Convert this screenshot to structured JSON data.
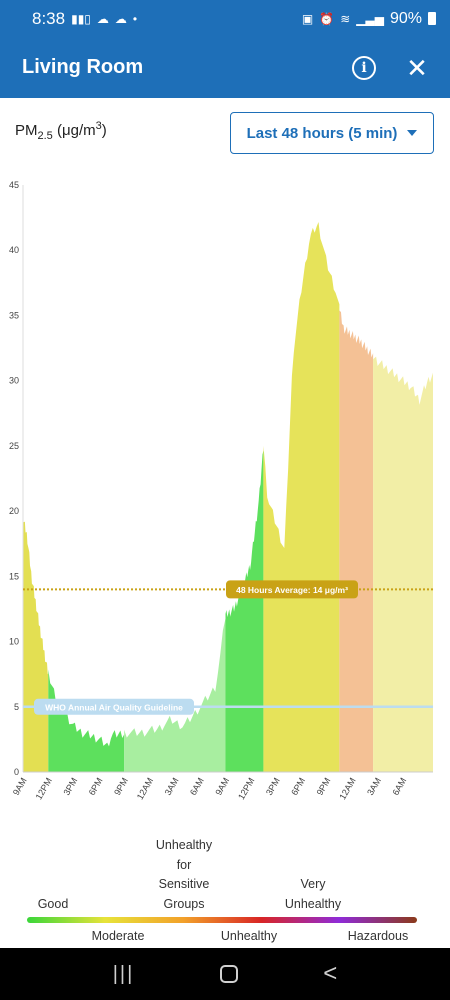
{
  "status_bar": {
    "time": "8:38",
    "battery": "90%",
    "icons": [
      "signal-bars-icon",
      "cloud-icon",
      "cloud-icon",
      "dot-icon",
      "battery-saver-icon",
      "alarm-icon",
      "wifi-icon",
      "cell-signal-icon",
      "battery-icon"
    ]
  },
  "app_bar": {
    "title": "Living Room",
    "info_icon": "info-icon",
    "close_icon": "close-icon"
  },
  "metric": {
    "name": "PM",
    "subscript": "2.5",
    "unit": "(μg/m",
    "unit_power": "3",
    "unit_close": ")"
  },
  "range_select": {
    "label": "Last 48 hours (5 min)"
  },
  "chart_data": {
    "type": "area",
    "ylim": [
      0,
      45
    ],
    "y_ticks": [
      "0",
      "5",
      "10",
      "15",
      "20",
      "25",
      "30",
      "35",
      "40",
      "45"
    ],
    "x_tick_labels": [
      "9AM",
      "12PM",
      "3PM",
      "6PM",
      "9PM",
      "12AM",
      "3AM",
      "6AM",
      "9AM",
      "12PM",
      "3PM",
      "6PM",
      "9PM",
      "12AM",
      "3AM",
      "6AM"
    ],
    "x_hours_span": [
      0,
      48.6
    ],
    "average": {
      "value": 14,
      "label": "48 Hours Average: 14 μg/m³",
      "color": "#c9a216"
    },
    "guideline": {
      "value": 5,
      "label": "WHO Annual Air Quality Guideline",
      "color": "#bcdcf0"
    },
    "series_points": [
      [
        0,
        19.5
      ],
      [
        0.5,
        18
      ],
      [
        1,
        15
      ],
      [
        2,
        11
      ],
      [
        3,
        7.5
      ],
      [
        4,
        5.5
      ],
      [
        5,
        4.5
      ],
      [
        6,
        3.5
      ],
      [
        7,
        3
      ],
      [
        8,
        2.8
      ],
      [
        9,
        2.5
      ],
      [
        10,
        2
      ],
      [
        10.5,
        2.8
      ],
      [
        12,
        3
      ],
      [
        14,
        3
      ],
      [
        16,
        3.3
      ],
      [
        17.5,
        4
      ],
      [
        19,
        3.5
      ],
      [
        20,
        4.2
      ],
      [
        21,
        5
      ],
      [
        22,
        5.8
      ],
      [
        22.8,
        6.5
      ],
      [
        23.3,
        8.5
      ],
      [
        24,
        12
      ],
      [
        25,
        12.5
      ],
      [
        26,
        14
      ],
      [
        27,
        16
      ],
      [
        28,
        21
      ],
      [
        28.5,
        25
      ],
      [
        29,
        21
      ],
      [
        30,
        19
      ],
      [
        31,
        17
      ],
      [
        32,
        32
      ],
      [
        33,
        37
      ],
      [
        34,
        41
      ],
      [
        35,
        42
      ],
      [
        36,
        39
      ],
      [
        37,
        37
      ],
      [
        38,
        34
      ],
      [
        40,
        33
      ],
      [
        42,
        31.5
      ],
      [
        44,
        30.5
      ],
      [
        46,
        29.5
      ],
      [
        47,
        28.5
      ],
      [
        48,
        30
      ],
      [
        48.6,
        30.5
      ]
    ],
    "bands": [
      {
        "from": 0,
        "to": 3,
        "color": "#e3df52"
      },
      {
        "from": 3,
        "to": 12,
        "color": "#5de05d"
      },
      {
        "from": 12,
        "to": 24,
        "color": "#a8eea0"
      },
      {
        "from": 24,
        "to": 28.5,
        "color": "#5de05d"
      },
      {
        "from": 28.5,
        "to": 37.5,
        "color": "#e6e35a"
      },
      {
        "from": 37.5,
        "to": 41.5,
        "color": "#f4c195"
      },
      {
        "from": 41.5,
        "to": 48.6,
        "color": "#f2eea6"
      }
    ]
  },
  "legend": {
    "good": "Good",
    "moderate": "Moderate",
    "usg_line1": "Unhealthy",
    "usg_line2": "for",
    "usg_line3": "Sensitive",
    "usg_line4": "Groups",
    "unhealthy": "Unhealthy",
    "very_line1": "Very",
    "very_line2": "Unhealthy",
    "hazardous": "Hazardous",
    "colors": [
      "#3ad63a",
      "#e7e33a",
      "#f2a12a",
      "#d82525",
      "#8f2bd8",
      "#8b3a1a"
    ]
  },
  "nav_bar": {
    "recents_glyph": "|||",
    "home_glyph": "",
    "back_glyph": "<"
  }
}
